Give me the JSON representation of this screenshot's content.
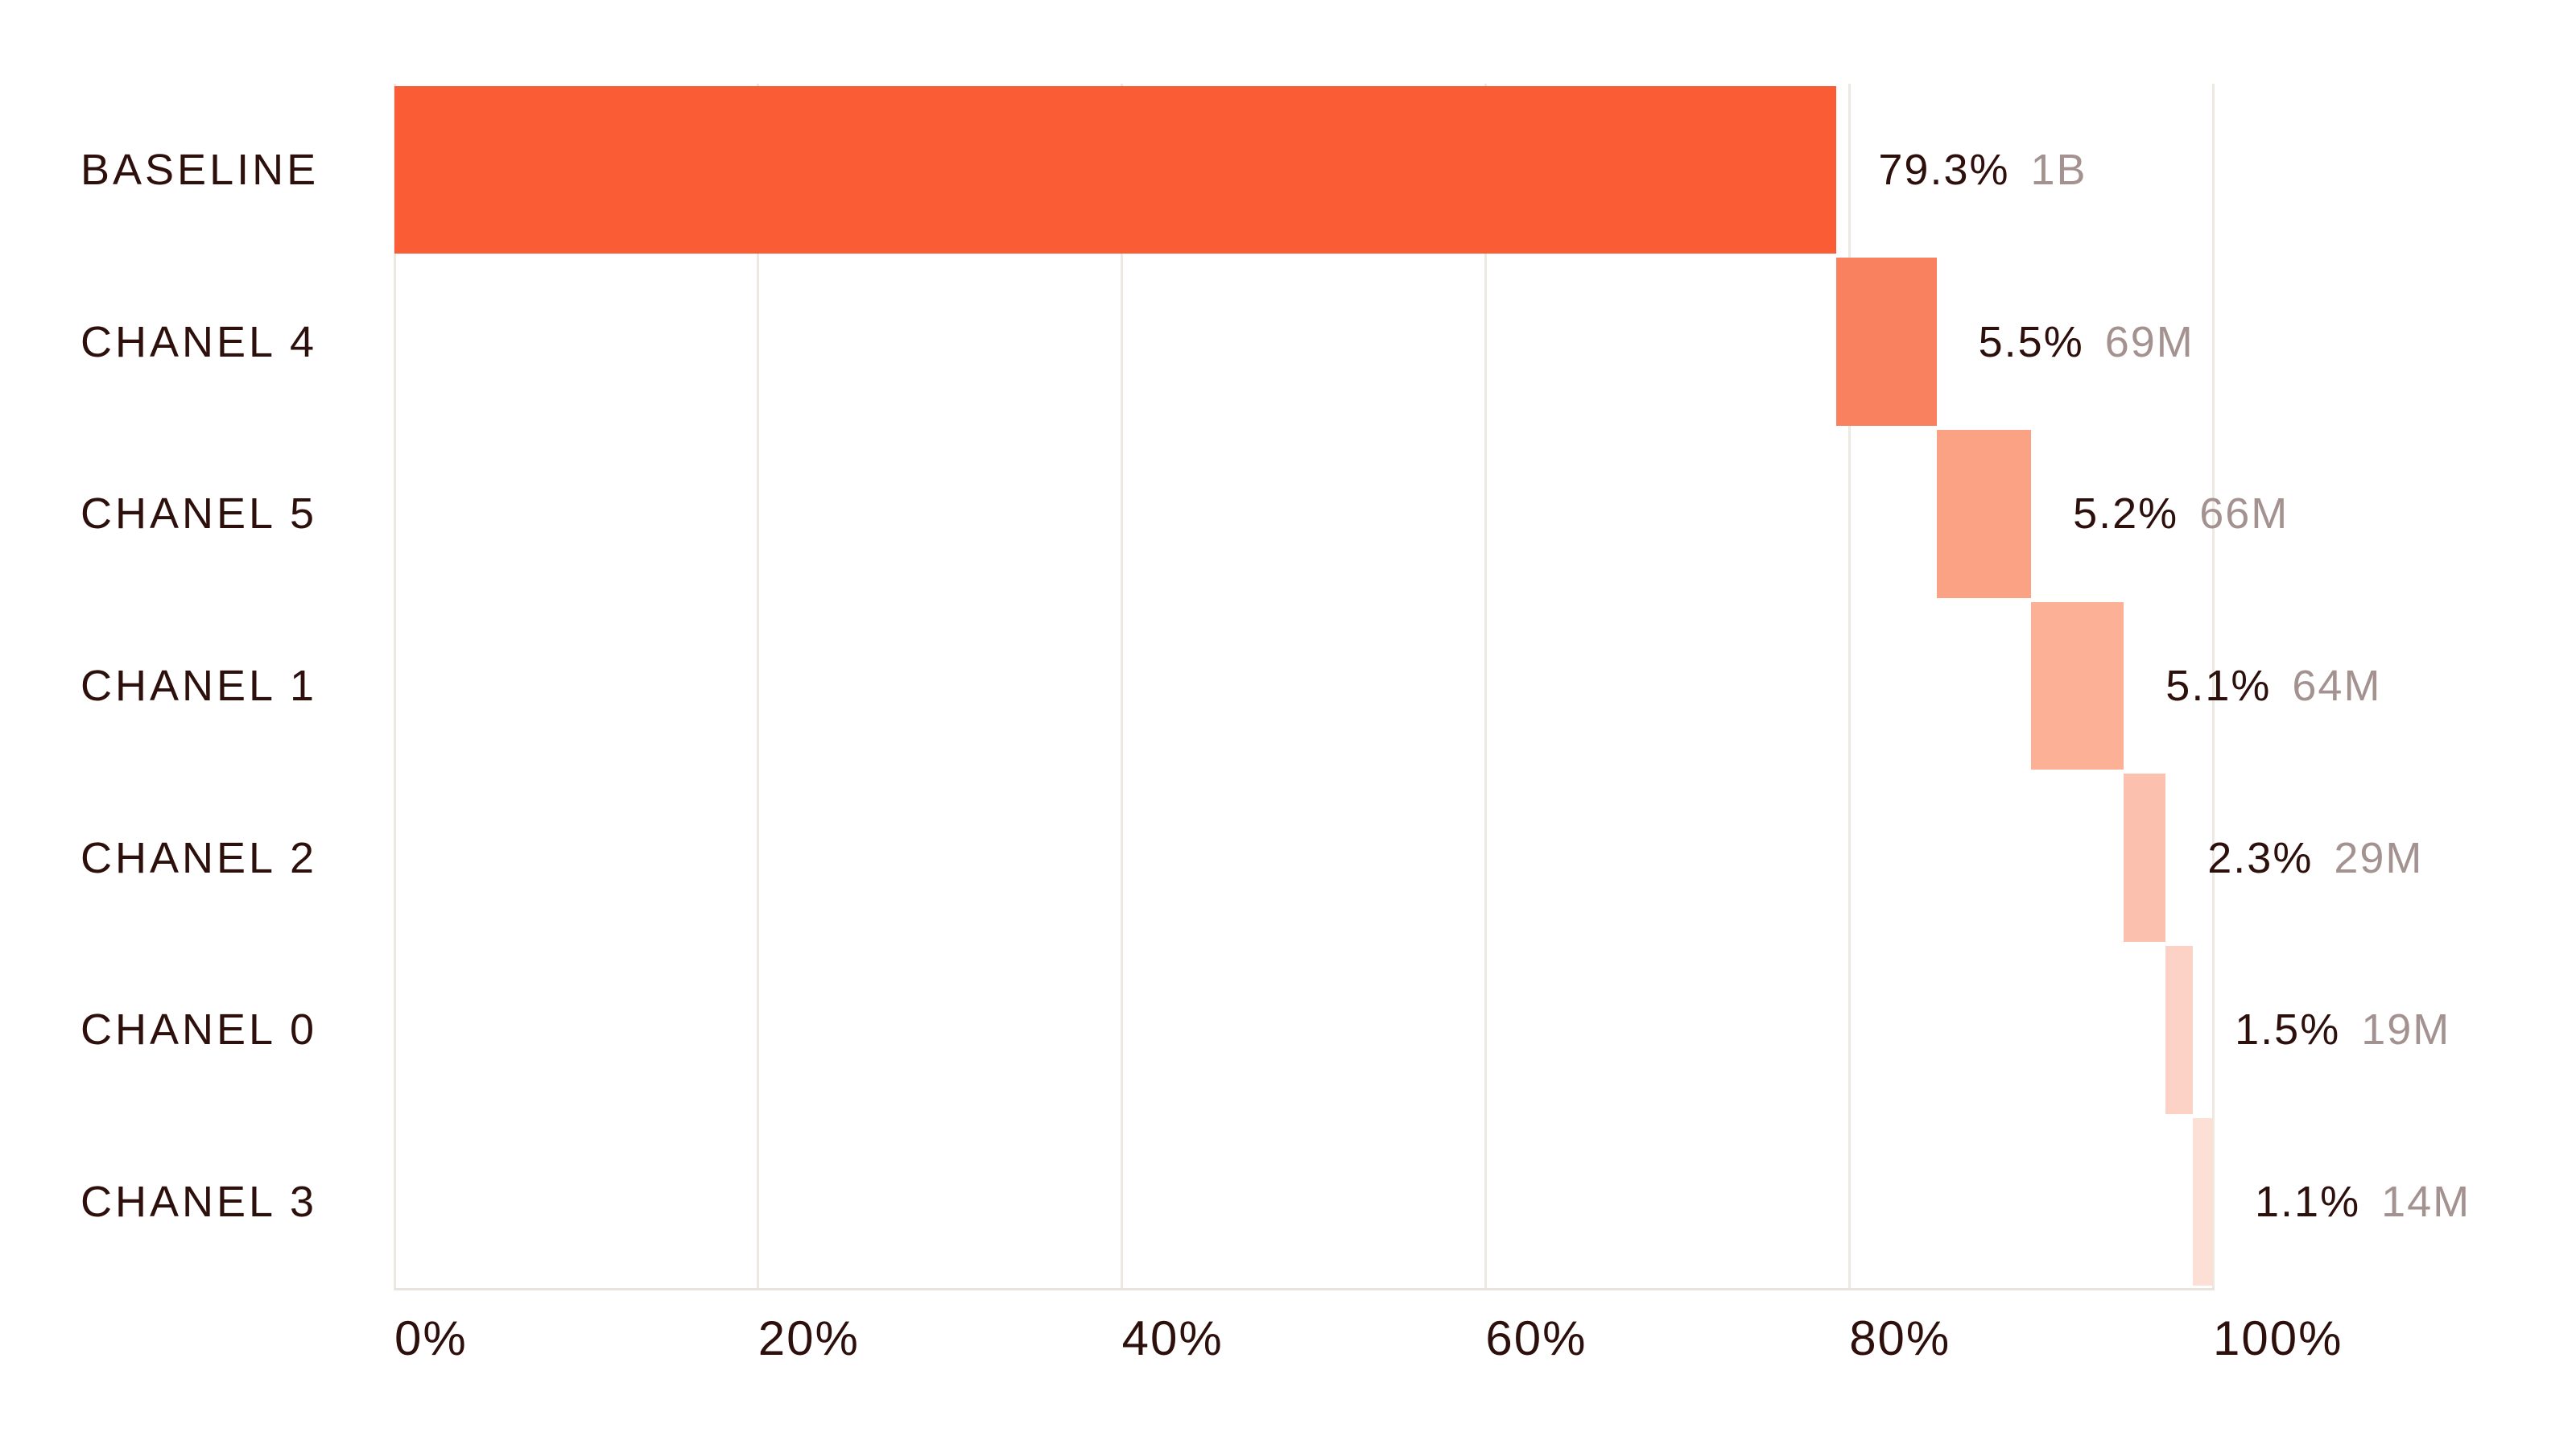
{
  "chart_data": {
    "type": "bar",
    "variant": "horizontal-waterfall",
    "title": "",
    "xlabel": "",
    "ylabel": "",
    "grid": true,
    "legend": false,
    "x_axis": {
      "range_pct": [
        0,
        100
      ],
      "ticks": [
        {
          "label": "0%",
          "pct": 0
        },
        {
          "label": "20%",
          "pct": 20
        },
        {
          "label": "40%",
          "pct": 40
        },
        {
          "label": "60%",
          "pct": 60
        },
        {
          "label": "80%",
          "pct": 80
        },
        {
          "label": "100%",
          "pct": 100
        }
      ]
    },
    "categories": [
      "BASELINE",
      "CHANEL 4",
      "CHANEL 5",
      "CHANEL 1",
      "CHANEL 2",
      "CHANEL 0",
      "CHANEL 3"
    ],
    "rows": [
      {
        "label": "BASELINE",
        "start_pct": 0,
        "value_pct": 79.3,
        "pct_label": "79.3%",
        "abs_label": "1B",
        "color": "#fa5d35"
      },
      {
        "label": "CHANEL 4",
        "start_pct": 79.3,
        "value_pct": 5.5,
        "pct_label": "5.5%",
        "abs_label": "69M",
        "color": "#fa8160"
      },
      {
        "label": "CHANEL 5",
        "start_pct": 84.8,
        "value_pct": 5.2,
        "pct_label": "5.2%",
        "abs_label": "66M",
        "color": "#fba285"
      },
      {
        "label": "CHANEL 1",
        "start_pct": 90.0,
        "value_pct": 5.1,
        "pct_label": "5.1%",
        "abs_label": "64M",
        "color": "#fcb196"
      },
      {
        "label": "CHANEL 2",
        "start_pct": 95.1,
        "value_pct": 2.3,
        "pct_label": "2.3%",
        "abs_label": "29M",
        "color": "#fcc1ae"
      },
      {
        "label": "CHANEL 0",
        "start_pct": 97.4,
        "value_pct": 1.5,
        "pct_label": "1.5%",
        "abs_label": "19M",
        "color": "#fdd2c6"
      },
      {
        "label": "CHANEL 3",
        "start_pct": 98.9,
        "value_pct": 1.1,
        "pct_label": "1.1%",
        "abs_label": "14M",
        "color": "#fde0d5"
      }
    ],
    "colors": {
      "text_dark": "#2d0f0c",
      "text_gray": "#a39290",
      "gridline": "#ece8e2",
      "axis_line": "#e8e3dc",
      "background": "#ffffff",
      "bar_ramp": [
        "#fa5d35",
        "#fa8160",
        "#fba285",
        "#fcb196",
        "#fcc1ae",
        "#fdd2c6",
        "#fde0d5"
      ]
    }
  }
}
